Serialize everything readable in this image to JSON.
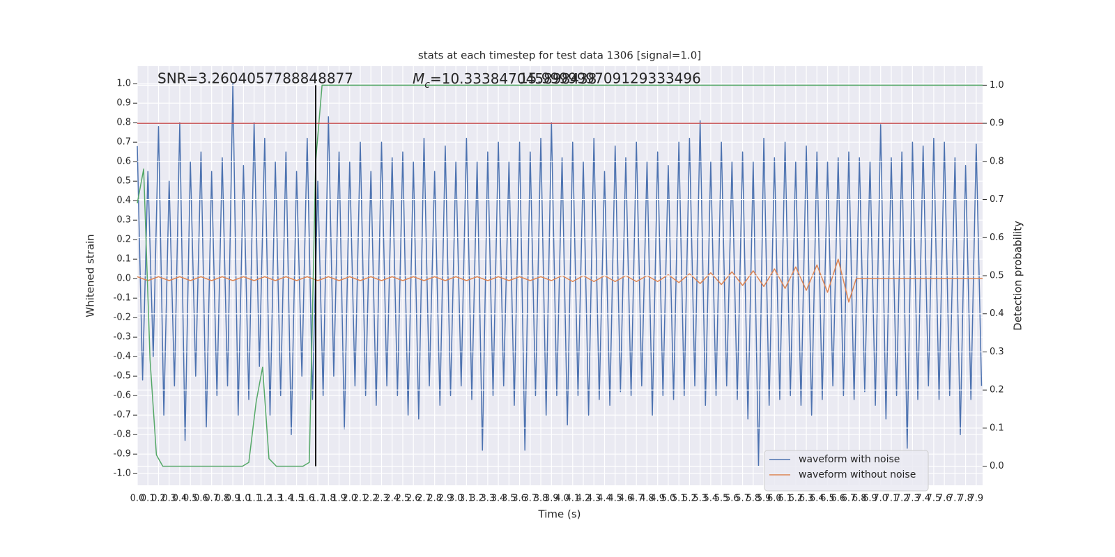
{
  "chart_data": {
    "type": "line",
    "title": "stats at each timestep for test data 1306 [signal=1.0]",
    "xlabel": "Time (s)",
    "ylabel": "Whitened strain",
    "y2label": "Detection probability",
    "annotations": {
      "snr": "SNR=3.2604057788848877",
      "mc_symbol": "M",
      "mc_subscript": "c",
      "mc_value": "=10.333847045898438",
      "second": "15.999999709129333496"
    },
    "xlim": [
      0,
      7.96
    ],
    "ylim": [
      -1.06,
      1.09
    ],
    "y2lim": [
      -0.05,
      1.05
    ],
    "xticks": [
      {
        "value": 0,
        "label": "0.0"
      },
      0.1,
      0.2,
      0.3,
      0.4,
      0.5,
      0.6,
      0.7,
      0.8,
      0.9,
      {
        "value": 1,
        "label": "1.0"
      },
      1.1,
      1.2,
      1.3,
      1.4,
      1.5,
      1.6,
      1.7,
      1.8,
      1.9,
      {
        "value": 2,
        "label": "2.0"
      },
      2.1,
      2.2,
      2.3,
      2.4,
      2.5,
      2.6,
      2.7,
      2.8,
      2.9,
      {
        "value": 3,
        "label": "3.0"
      },
      3.1,
      3.2,
      3.3,
      3.4,
      3.5,
      3.6,
      3.7,
      3.8,
      3.9,
      {
        "value": 4,
        "label": "4.0"
      },
      4.1,
      4.2,
      4.3,
      4.4,
      4.5,
      4.6,
      4.7,
      4.8,
      4.9,
      {
        "value": 5,
        "label": "5.0"
      },
      5.1,
      5.2,
      5.3,
      5.4,
      5.5,
      5.6,
      5.7,
      5.8,
      5.9,
      {
        "value": 6,
        "label": "6.0"
      },
      6.1,
      6.2,
      6.3,
      6.4,
      6.5,
      6.6,
      6.7,
      6.8,
      6.9,
      {
        "value": 7,
        "label": "7.0"
      },
      7.1,
      7.2,
      7.3,
      7.4,
      7.5,
      7.6,
      7.7,
      7.8,
      7.9
    ],
    "yticks": [
      {
        "value": -1,
        "label": "-1.0"
      },
      -0.9,
      -0.8,
      -0.7,
      -0.6,
      -0.5,
      -0.4,
      -0.3,
      -0.2,
      -0.1,
      {
        "value": 0,
        "label": "0.0"
      },
      0.1,
      0.2,
      0.3,
      0.4,
      0.5,
      0.6,
      0.7,
      0.8,
      0.9,
      {
        "value": 1,
        "label": "1.0"
      }
    ],
    "y2ticks": [
      {
        "value": 0,
        "label": "0.0"
      },
      0.1,
      0.2,
      0.3,
      0.4,
      0.5,
      0.6,
      0.7,
      0.8,
      0.9,
      {
        "value": 1,
        "label": "1.0"
      }
    ],
    "grid": true,
    "legend": "lower right",
    "series": [
      {
        "name": "waveform with noise",
        "color": "#4c72b0",
        "axis": "y",
        "x": [
          0,
          0.05,
          0.1,
          0.15,
          0.2,
          0.25,
          0.3,
          0.35,
          0.4,
          0.45,
          0.5,
          0.55,
          0.6,
          0.65,
          0.7,
          0.75,
          0.8,
          0.85,
          0.9,
          0.95,
          1,
          1.05,
          1.1,
          1.15,
          1.2,
          1.25,
          1.3,
          1.35,
          1.4,
          1.45,
          1.5,
          1.55,
          1.6,
          1.65,
          1.7,
          1.75,
          1.8,
          1.85,
          1.9,
          1.95,
          2,
          2.05,
          2.1,
          2.15,
          2.2,
          2.25,
          2.3,
          2.35,
          2.4,
          2.45,
          2.5,
          2.55,
          2.6,
          2.65,
          2.7,
          2.75,
          2.8,
          2.85,
          2.9,
          2.95,
          3,
          3.05,
          3.1,
          3.15,
          3.2,
          3.25,
          3.3,
          3.35,
          3.4,
          3.45,
          3.5,
          3.55,
          3.6,
          3.65,
          3.7,
          3.75,
          3.8,
          3.85,
          3.9,
          3.95,
          4,
          4.05,
          4.1,
          4.15,
          4.2,
          4.25,
          4.3,
          4.35,
          4.4,
          4.45,
          4.5,
          4.55,
          4.6,
          4.65,
          4.7,
          4.75,
          4.8,
          4.85,
          4.9,
          4.95,
          5,
          5.05,
          5.1,
          5.15,
          5.2,
          5.25,
          5.3,
          5.35,
          5.4,
          5.45,
          5.5,
          5.55,
          5.6,
          5.65,
          5.7,
          5.75,
          5.8,
          5.85,
          5.9,
          5.95,
          6,
          6.05,
          6.1,
          6.15,
          6.2,
          6.25,
          6.3,
          6.35,
          6.4,
          6.45,
          6.5,
          6.55,
          6.6,
          6.65,
          6.7,
          6.75,
          6.8,
          6.85,
          6.9,
          6.95,
          7,
          7.05,
          7.1,
          7.15,
          7.2,
          7.25,
          7.3,
          7.35,
          7.4,
          7.45,
          7.5,
          7.55,
          7.6,
          7.65,
          7.7,
          7.75,
          7.8,
          7.85,
          7.9,
          7.95
        ],
        "values": [
          0.68,
          -0.52,
          0.55,
          -0.4,
          0.78,
          -0.7,
          0.5,
          -0.55,
          0.8,
          -0.83,
          0.6,
          -0.5,
          0.65,
          -0.76,
          0.55,
          -0.6,
          0.62,
          -0.55,
          1.0,
          -0.7,
          0.58,
          -0.62,
          0.8,
          -0.45,
          0.72,
          -0.7,
          0.6,
          -0.6,
          0.65,
          -0.8,
          0.55,
          -0.5,
          0.72,
          -0.62,
          0.5,
          -0.6,
          0.83,
          -0.5,
          0.65,
          -0.77,
          0.6,
          -0.55,
          0.7,
          -0.6,
          0.55,
          -0.65,
          0.7,
          -0.55,
          0.62,
          -0.6,
          0.65,
          -0.7,
          0.6,
          -0.72,
          0.72,
          -0.55,
          0.55,
          -0.65,
          0.68,
          -0.6,
          0.6,
          -0.55,
          0.72,
          -0.62,
          0.6,
          -0.88,
          0.65,
          -0.6,
          0.7,
          -0.55,
          0.6,
          -0.65,
          0.7,
          -0.88,
          0.65,
          -0.6,
          0.72,
          -0.7,
          0.8,
          -0.6,
          0.62,
          -0.75,
          0.7,
          -0.6,
          0.6,
          -0.7,
          0.72,
          -0.62,
          0.55,
          -0.65,
          0.68,
          -0.58,
          0.62,
          -0.6,
          0.7,
          -0.55,
          0.6,
          -0.7,
          0.65,
          -0.6,
          0.58,
          -0.62,
          0.7,
          -0.6,
          0.72,
          -0.55,
          0.81,
          -0.65,
          0.6,
          -0.6,
          0.7,
          -0.55,
          0.6,
          -0.62,
          0.65,
          -0.72,
          0.6,
          -0.96,
          0.72,
          -0.65,
          0.62,
          -0.62,
          0.7,
          -0.6,
          0.6,
          -0.65,
          0.68,
          -0.7,
          0.65,
          -0.62,
          0.6,
          -0.55,
          0.62,
          -0.6,
          0.65,
          -0.62,
          0.62,
          -0.58,
          0.6,
          -0.65,
          0.79,
          -0.72,
          0.62,
          -0.6,
          0.65,
          -0.87,
          0.7,
          -0.62,
          0.68,
          -0.55,
          0.72,
          -0.62,
          0.7,
          -0.6,
          0.62,
          -0.8,
          0.58,
          -0.62,
          0.69,
          -0.55
        ]
      },
      {
        "name": "waveform without noise",
        "color": "#dd8452",
        "axis": "y",
        "x": [
          0,
          0.1,
          0.2,
          0.3,
          0.4,
          0.5,
          0.6,
          0.7,
          0.8,
          0.9,
          1,
          1.1,
          1.2,
          1.3,
          1.4,
          1.5,
          1.6,
          1.7,
          1.8,
          1.9,
          2,
          2.1,
          2.2,
          2.3,
          2.4,
          2.5,
          2.6,
          2.7,
          2.8,
          2.9,
          3,
          3.1,
          3.2,
          3.3,
          3.4,
          3.5,
          3.6,
          3.7,
          3.8,
          3.9,
          4,
          4.1,
          4.2,
          4.3,
          4.4,
          4.5,
          4.6,
          4.7,
          4.8,
          4.9,
          5,
          5.1,
          5.2,
          5.3,
          5.4,
          5.5,
          5.6,
          5.7,
          5.8,
          5.9,
          6,
          6.1,
          6.2,
          6.3,
          6.4,
          6.5,
          6.6,
          6.7,
          6.77,
          7.96
        ],
        "values": [
          0.01,
          -0.01,
          0.01,
          -0.01,
          0.01,
          -0.01,
          0.01,
          -0.01,
          0.01,
          -0.01,
          0.01,
          -0.01,
          0.01,
          -0.01,
          0.01,
          -0.01,
          0.01,
          -0.01,
          0.01,
          -0.01,
          0.01,
          -0.01,
          0.01,
          -0.01,
          0.01,
          -0.01,
          0.01,
          -0.01,
          0.01,
          -0.01,
          0.01,
          -0.01,
          0.01,
          -0.01,
          0.01,
          -0.01,
          0.01,
          -0.01,
          0.01,
          -0.01,
          0.015,
          -0.015,
          0.015,
          -0.015,
          0.015,
          -0.015,
          0.015,
          -0.015,
          0.015,
          -0.015,
          0.02,
          -0.02,
          0.025,
          -0.025,
          0.03,
          -0.03,
          0.035,
          -0.035,
          0.04,
          -0.04,
          0.05,
          -0.05,
          0.06,
          -0.06,
          0.07,
          -0.07,
          0.1,
          -0.12,
          0,
          0
        ]
      },
      {
        "color": "#55a868",
        "axis": "y2",
        "x": [
          0,
          0.06,
          0.12,
          0.18,
          0.24,
          0.99,
          1.05,
          1.12,
          1.18,
          1.24,
          1.31,
          1.56,
          1.62,
          1.68,
          1.74,
          7.96
        ],
        "values": [
          0.69,
          0.78,
          0.28,
          0.03,
          0,
          0,
          0.01,
          0.17,
          0.26,
          0.02,
          0,
          0,
          0.01,
          0.8,
          1.0,
          1.0
        ]
      }
    ],
    "hline": {
      "y": 0.9,
      "axis": "y2",
      "color": "#c44e52"
    },
    "vline": {
      "x": 1.68,
      "ymin": 0,
      "ymax": 1,
      "axis": "y2",
      "color": "#000000"
    }
  }
}
